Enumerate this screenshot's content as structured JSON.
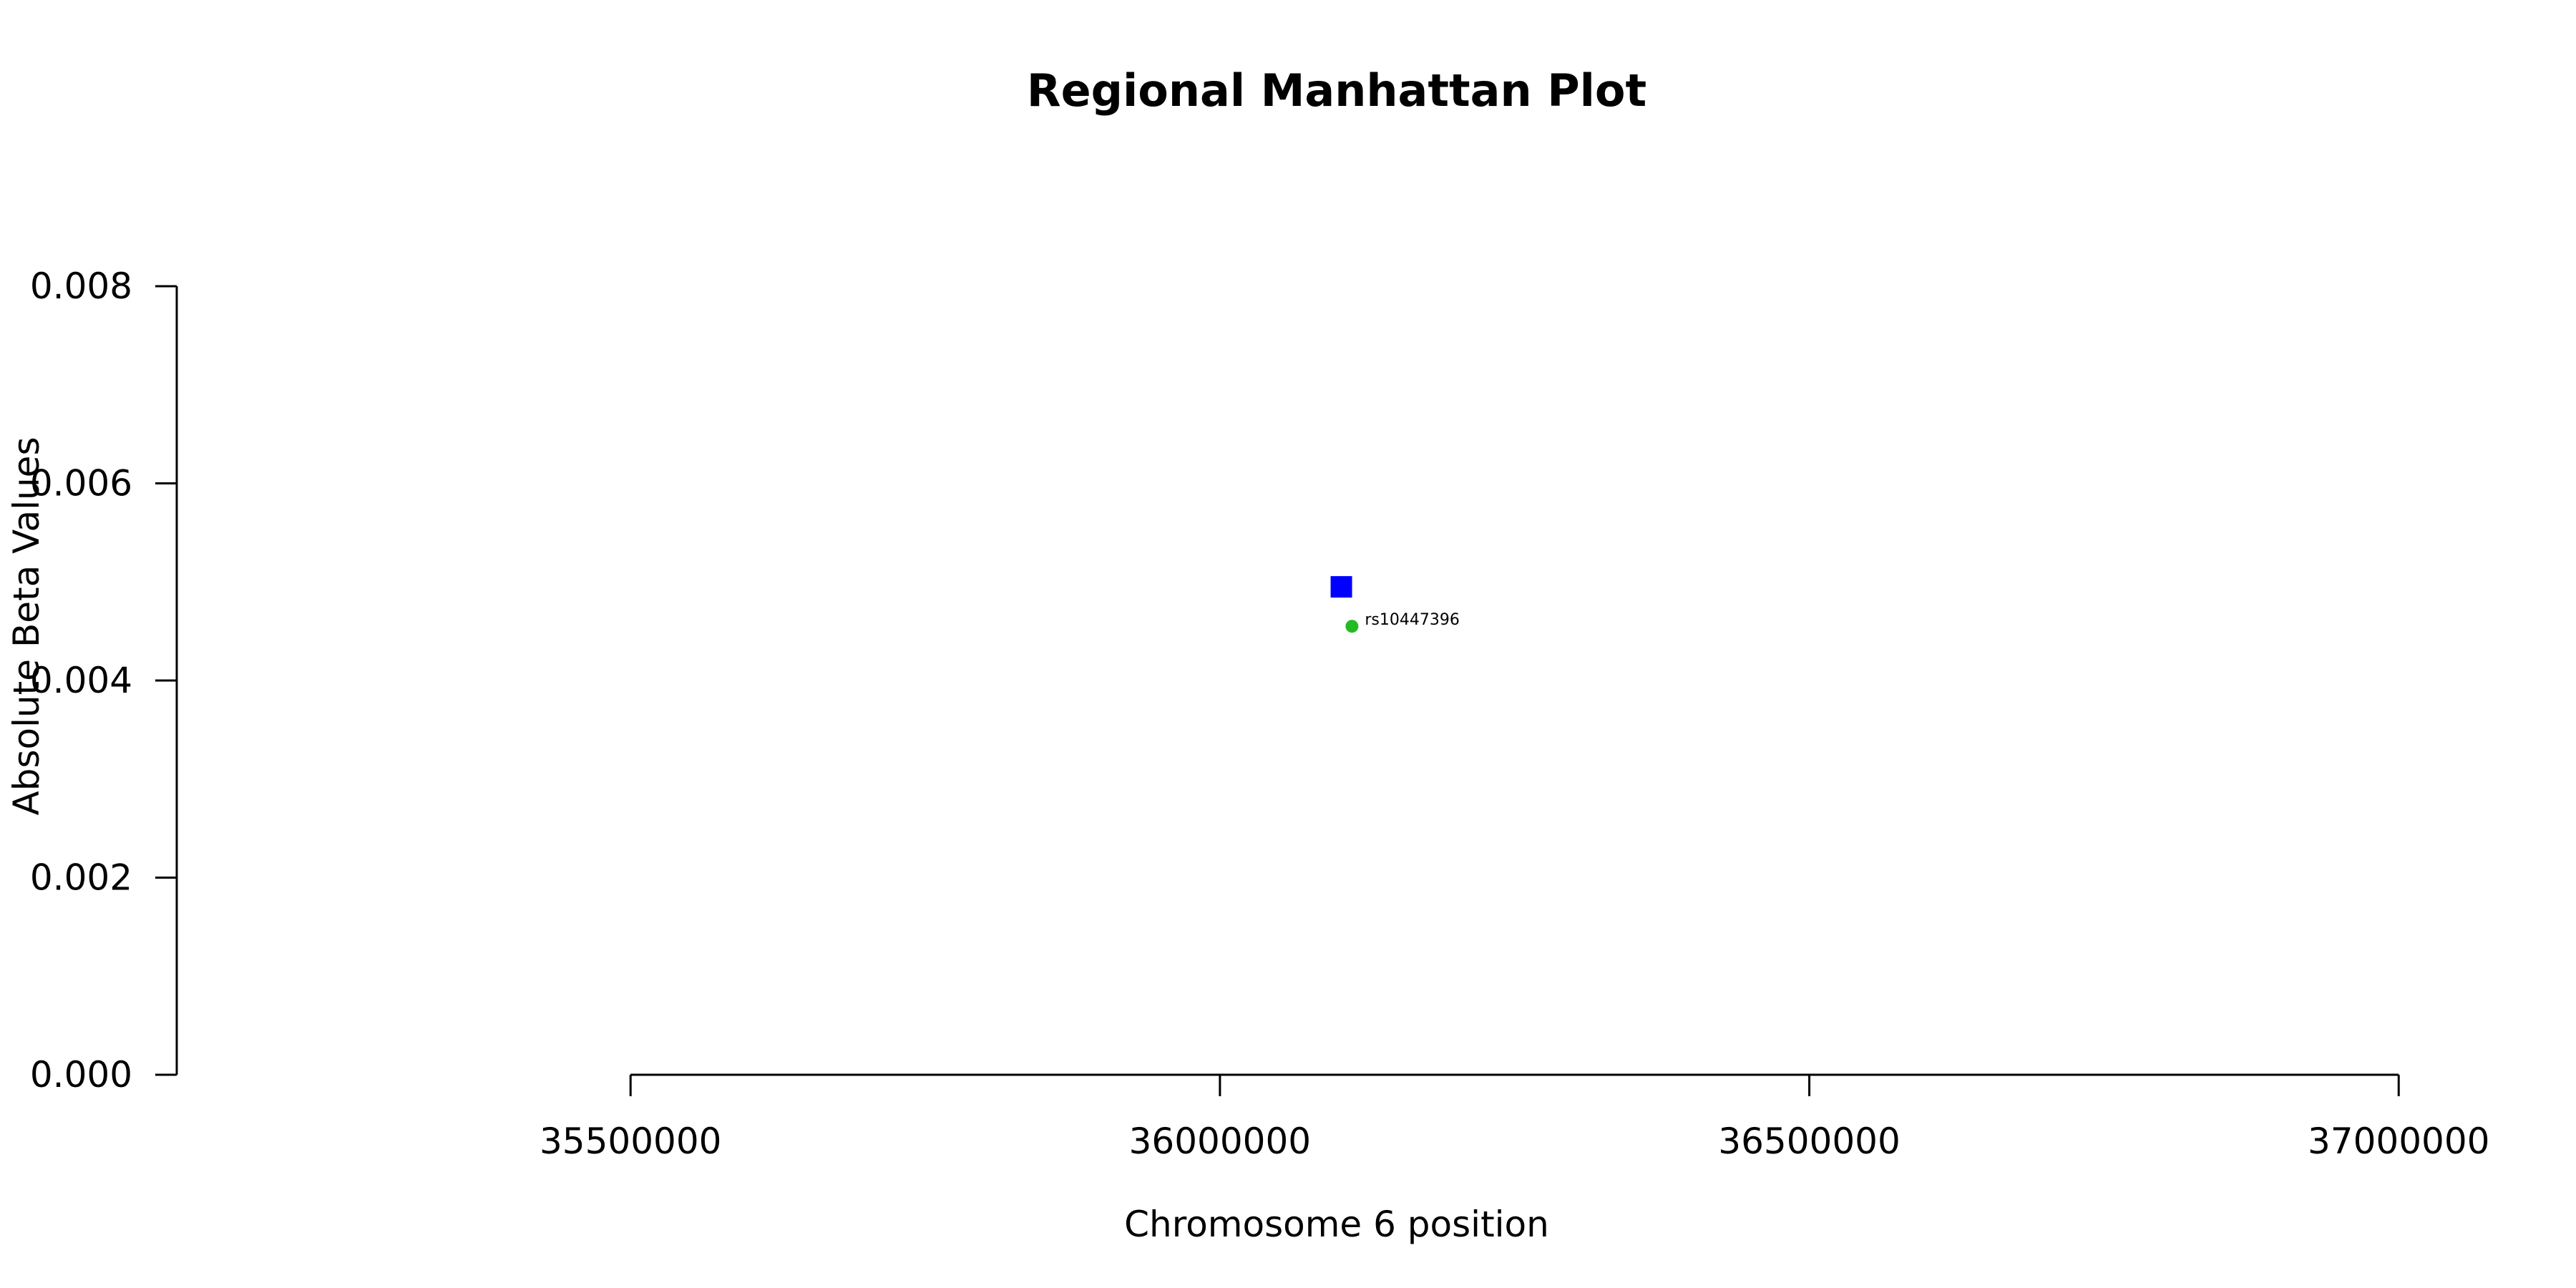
{
  "chart_data": {
    "type": "scatter",
    "title": "Regional Manhattan Plot",
    "xlabel": "Chromosome 6 position",
    "ylabel": "Absolute Beta Values",
    "xlim": [
      35115000,
      37080000
    ],
    "ylim": [
      0,
      0.008
    ],
    "x_ticks": [
      35500000,
      36000000,
      36500000,
      37000000
    ],
    "x_tick_labels": [
      "35500000",
      "36000000",
      "36500000",
      "37000000"
    ],
    "y_ticks": [
      0,
      0.002,
      0.004,
      0.006,
      0.008
    ],
    "y_tick_labels": [
      "0.000",
      "0.002",
      "0.004",
      "0.006",
      "0.008"
    ],
    "grid": false,
    "series": [
      {
        "marker": "square",
        "color": "#0000ff",
        "points": [
          {
            "x": 36103000,
            "y": 0.00495
          }
        ]
      },
      {
        "marker": "circle",
        "color": "#22bb22",
        "points": [
          {
            "x": 36112000,
            "y": 0.00455,
            "label": "rs10447396"
          }
        ]
      }
    ]
  }
}
